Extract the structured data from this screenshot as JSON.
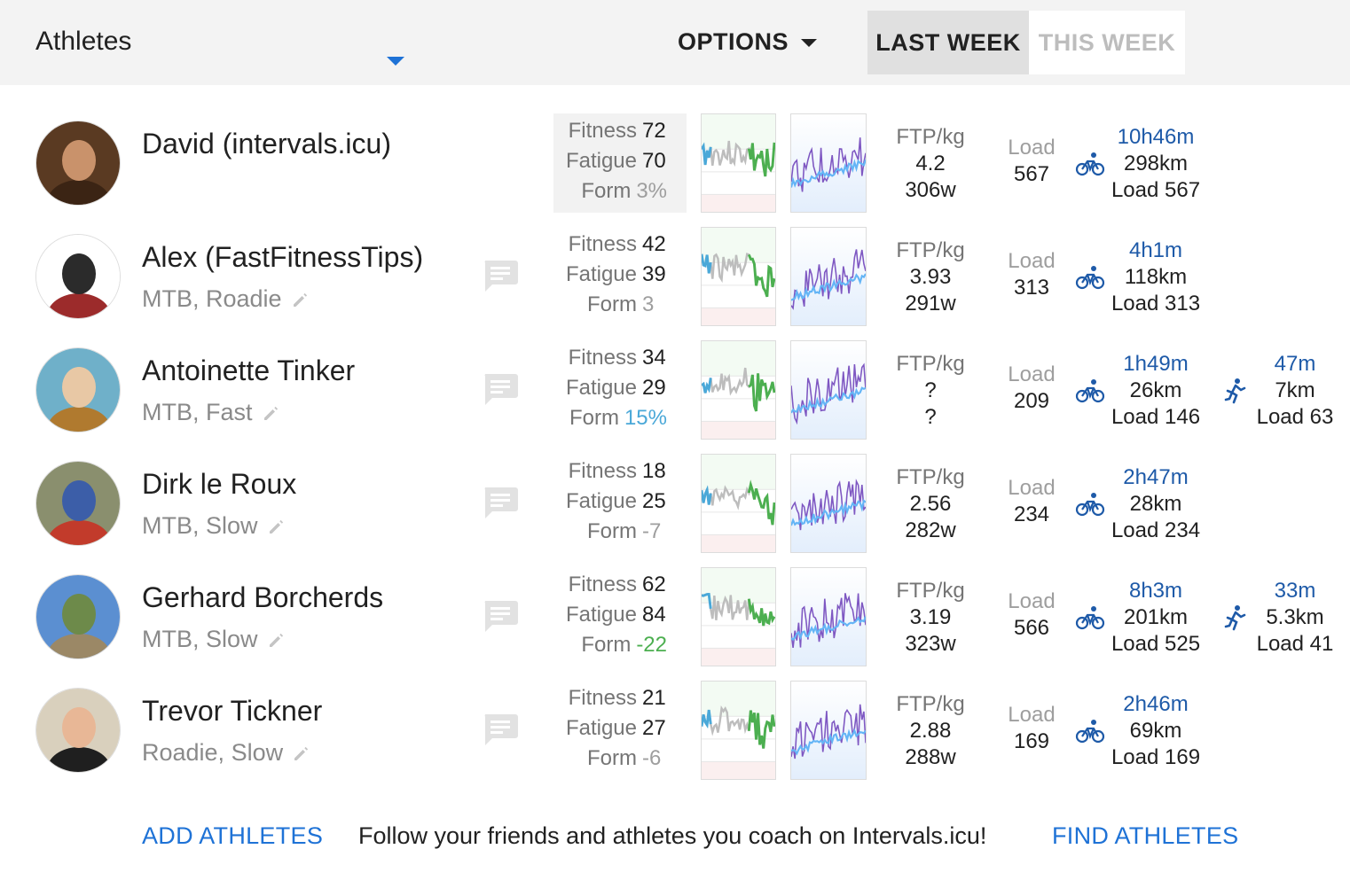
{
  "header": {
    "select_label": "Athletes",
    "options_label": "OPTIONS",
    "last_week_label": "LAST WEEK",
    "this_week_label": "THIS WEEK"
  },
  "labels": {
    "fitness": "Fitness",
    "fatigue": "Fatigue",
    "form": "Form",
    "ftp_kg": "FTP/kg",
    "load": "Load"
  },
  "colors": {
    "accent": "#1e72d6",
    "link": "#1e5aa8",
    "form_green": "#4caf50",
    "form_blue": "#4aa8d8",
    "chart_purple": "#7e57c2",
    "chart_light_blue": "#64b5f6"
  },
  "athletes": [
    {
      "name": "David (intervals.icu)",
      "tags": "",
      "fitness": "72",
      "fatigue": "70",
      "form": "3%",
      "ftp_kg": "4.2",
      "ftp_w": "306w",
      "load": "567",
      "ride": {
        "time": "10h46m",
        "distance": "298km",
        "load": "Load 567"
      },
      "run": null
    },
    {
      "name": "Alex (FastFitnessTips)",
      "tags": "MTB, Roadie",
      "fitness": "42",
      "fatigue": "39",
      "form": "3",
      "ftp_kg": "3.93",
      "ftp_w": "291w",
      "load": "313",
      "ride": {
        "time": "4h1m",
        "distance": "118km",
        "load": "Load 313"
      },
      "run": null
    },
    {
      "name": "Antoinette Tinker",
      "tags": "MTB, Fast",
      "fitness": "34",
      "fatigue": "29",
      "form": "15%",
      "ftp_kg": "?",
      "ftp_w": "?",
      "load": "209",
      "ride": {
        "time": "1h49m",
        "distance": "26km",
        "load": "Load 146"
      },
      "run": {
        "time": "47m",
        "distance": "7km",
        "load": "Load 63"
      }
    },
    {
      "name": "Dirk le Roux",
      "tags": "MTB, Slow",
      "fitness": "18",
      "fatigue": "25",
      "form": "-7",
      "ftp_kg": "2.56",
      "ftp_w": "282w",
      "load": "234",
      "ride": {
        "time": "2h47m",
        "distance": "28km",
        "load": "Load 234"
      },
      "run": null
    },
    {
      "name": "Gerhard Borcherds",
      "tags": "MTB, Slow",
      "fitness": "62",
      "fatigue": "84",
      "form": "-22",
      "ftp_kg": "3.19",
      "ftp_w": "323w",
      "load": "566",
      "ride": {
        "time": "8h3m",
        "distance": "201km",
        "load": "Load 525"
      },
      "run": {
        "time": "33m",
        "distance": "5.3km",
        "load": "Load 41"
      }
    },
    {
      "name": "Trevor Tickner",
      "tags": "Roadie, Slow",
      "fitness": "21",
      "fatigue": "27",
      "form": "-6",
      "ftp_kg": "2.88",
      "ftp_w": "288w",
      "load": "169",
      "ride": {
        "time": "2h46m",
        "distance": "69km",
        "load": "Load 169"
      },
      "run": null
    }
  ],
  "footer": {
    "add_label": "ADD ATHLETES",
    "follow_text": "Follow your friends and athletes you coach on Intervals.icu!",
    "find_label": "FIND ATHLETES"
  }
}
